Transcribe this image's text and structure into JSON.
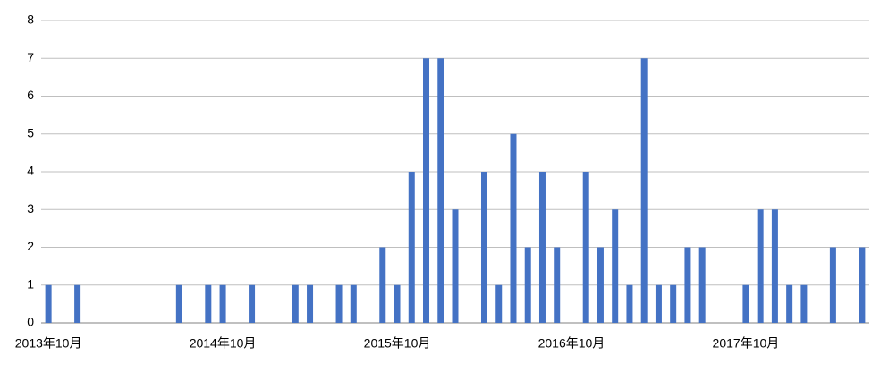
{
  "chart_data": {
    "type": "bar",
    "categories": [
      "2013年10月",
      null,
      null,
      null,
      null,
      null,
      null,
      null,
      null,
      null,
      null,
      null,
      "2014年10月",
      null,
      null,
      null,
      null,
      null,
      null,
      null,
      null,
      null,
      null,
      null,
      "2015年10月",
      null,
      null,
      null,
      null,
      null,
      null,
      null,
      null,
      null,
      null,
      null,
      "2016年10月",
      null,
      null,
      null,
      null,
      null,
      null,
      null,
      null,
      null,
      null,
      null,
      "2017年10月",
      null,
      null,
      null,
      null,
      null,
      null,
      null,
      null
    ],
    "values": [
      1,
      0,
      1,
      0,
      0,
      0,
      0,
      0,
      0,
      1,
      0,
      1,
      1,
      0,
      1,
      0,
      0,
      1,
      1,
      0,
      1,
      1,
      0,
      2,
      1,
      4,
      7,
      7,
      3,
      0,
      4,
      1,
      5,
      2,
      4,
      2,
      0,
      4,
      2,
      3,
      1,
      7,
      1,
      1,
      2,
      2,
      0,
      0,
      1,
      3,
      3,
      1,
      1,
      0,
      2,
      0,
      2
    ],
    "color": "#4472c4",
    "ylim": [
      0,
      8
    ],
    "yticks": [
      0,
      1,
      2,
      3,
      4,
      5,
      6,
      7,
      8
    ],
    "grid": true
  }
}
